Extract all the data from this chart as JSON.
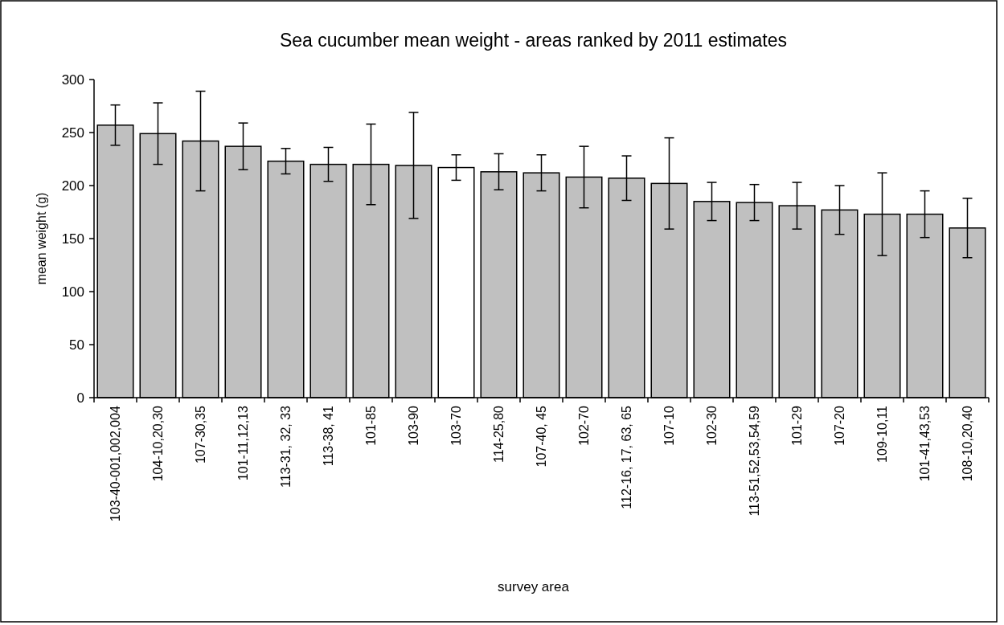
{
  "chart_data": {
    "type": "bar",
    "title": "Sea cucumber mean weight - areas ranked by 2011 estimates",
    "xlabel": "survey area",
    "ylabel": "mean weight (g)",
    "categories": [
      "103-40-001,002,004",
      "104-10,20,30",
      "107-30,35",
      "101-11,12,13",
      "113-31, 32, 33",
      "113-38, 41",
      "101-85",
      "103-90",
      "103-70",
      "114-25,80",
      "107-40, 45",
      "102-70",
      "112-16, 17, 63, 65",
      "107-10",
      "102-30",
      "113-51,52,53,54,59",
      "101-29",
      "107-20",
      "109-10,11",
      "101-41,43,53",
      "108-10,20,40"
    ],
    "values": [
      257,
      249,
      242,
      237,
      223,
      220,
      220,
      219,
      217,
      213,
      212,
      208,
      207,
      202,
      185,
      184,
      181,
      177,
      173,
      173,
      160
    ],
    "errors": [
      19,
      29,
      47,
      22,
      12,
      16,
      38,
      50,
      12,
      17,
      17,
      29,
      21,
      43,
      18,
      17,
      22,
      23,
      39,
      22,
      28
    ],
    "colors": [
      "#c0c0c0",
      "#c0c0c0",
      "#c0c0c0",
      "#c0c0c0",
      "#c0c0c0",
      "#c0c0c0",
      "#c0c0c0",
      "#c0c0c0",
      "#ffffff",
      "#c0c0c0",
      "#c0c0c0",
      "#c0c0c0",
      "#c0c0c0",
      "#c0c0c0",
      "#c0c0c0",
      "#c0c0c0",
      "#c0c0c0",
      "#c0c0c0",
      "#c0c0c0",
      "#c0c0c0",
      "#c0c0c0"
    ],
    "ylim": [
      0,
      300
    ],
    "yticks": [
      0,
      50,
      100,
      150,
      200,
      250,
      300
    ],
    "grid": false
  }
}
